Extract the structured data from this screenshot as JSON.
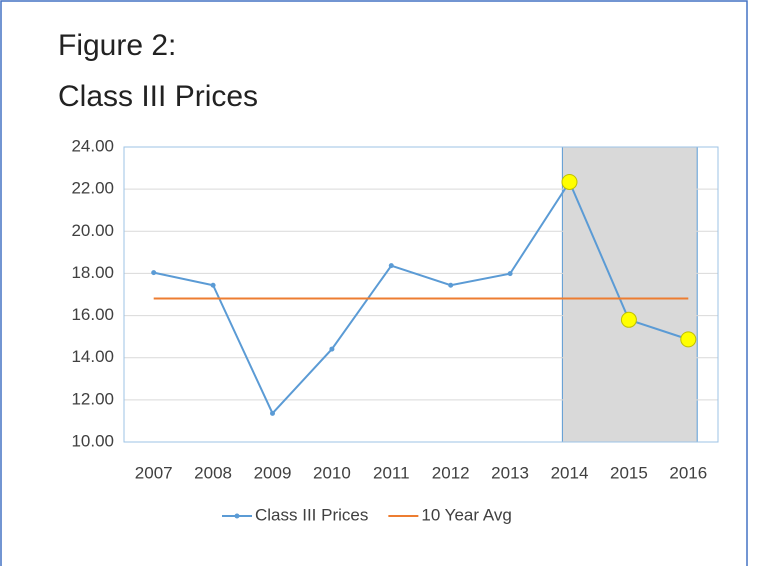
{
  "chart_data": {
    "type": "line",
    "title": [
      "Figure 2:",
      "Class III Prices"
    ],
    "categories": [
      "2007",
      "2008",
      "2009",
      "2010",
      "2011",
      "2012",
      "2013",
      "2014",
      "2015",
      "2016"
    ],
    "series": [
      {
        "name": "Class III Prices",
        "color": "#5b9bd5",
        "values": [
          18.04,
          17.44,
          11.36,
          14.41,
          18.37,
          17.44,
          17.99,
          22.34,
          15.8,
          14.87
        ]
      },
      {
        "name": "10 Year Avg",
        "color": "#ed7d31",
        "values": [
          16.81,
          16.81,
          16.81,
          16.81,
          16.81,
          16.81,
          16.81,
          16.81,
          16.81,
          16.81
        ]
      }
    ],
    "ylim": [
      10,
      24
    ],
    "yticks": [
      {
        "value": 10,
        "label": "10.00"
      },
      {
        "value": 12,
        "label": "12.00"
      },
      {
        "value": 14,
        "label": "14.00"
      },
      {
        "value": 16,
        "label": "16.00"
      },
      {
        "value": 18,
        "label": "18.00"
      },
      {
        "value": 20,
        "label": "20.00"
      },
      {
        "value": 22,
        "label": "22.00"
      },
      {
        "value": 24,
        "label": "24.00"
      }
    ],
    "grid": true,
    "legend": "bottom",
    "highlight": {
      "categories": [
        "2014",
        "2015",
        "2016"
      ],
      "color": "#d9d9d9",
      "marker_color": "#ffff00"
    }
  }
}
